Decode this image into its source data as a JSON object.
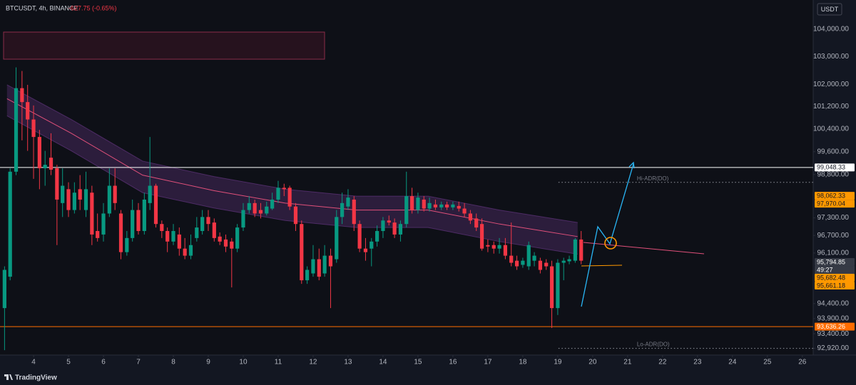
{
  "header": {
    "symbol": "BTCUSDT, 4h, BINANCE",
    "change": "-627.75 (-0.65%)",
    "currency": "USDT",
    "brand": "TradingView"
  },
  "chart_data": {
    "type": "candlestick",
    "log_scale": true,
    "grid": false,
    "up_color": "#089981",
    "down_color": "#f23645",
    "xlim": [
      3.04,
      26.31
    ],
    "xticks": [
      4,
      5,
      6,
      7,
      8,
      9,
      10,
      11,
      12,
      13,
      14,
      15,
      16,
      17,
      18,
      19,
      20,
      21,
      22,
      23,
      24,
      25,
      26
    ],
    "ylim": [
      92700,
      105080
    ],
    "yticks": [
      {
        "value": 104000,
        "label": "104,000.00"
      },
      {
        "value": 103000,
        "label": "103,000.00"
      },
      {
        "value": 102000,
        "label": "102,000.00"
      },
      {
        "value": 101200,
        "label": "101,200.00"
      },
      {
        "value": 100400,
        "label": "100,400.00"
      },
      {
        "value": 99600,
        "label": "99,600.00"
      },
      {
        "value": 98800,
        "label": "98,800.00"
      },
      {
        "value": 97300,
        "label": "97,300.00"
      },
      {
        "value": 96700,
        "label": "96,700.00"
      },
      {
        "value": 96100,
        "label": "96,100.00"
      },
      {
        "value": 94400,
        "label": "94,400.00"
      },
      {
        "value": 93900,
        "label": "93,900.00"
      },
      {
        "value": 93400,
        "label": "93,400.00"
      },
      {
        "value": 92920,
        "label": "92,920.00"
      }
    ],
    "x": [
      3.17,
      3.33,
      3.5,
      3.67,
      3.83,
      4,
      4.17,
      4.33,
      4.5,
      4.67,
      4.83,
      5,
      5.17,
      5.33,
      5.5,
      5.67,
      5.83,
      6,
      6.17,
      6.33,
      6.5,
      6.67,
      6.83,
      7,
      7.17,
      7.33,
      7.5,
      7.67,
      7.83,
      8,
      8.17,
      8.33,
      8.5,
      8.67,
      8.83,
      9,
      9.17,
      9.33,
      9.5,
      9.67,
      9.83,
      10,
      10.17,
      10.33,
      10.5,
      10.67,
      10.83,
      11,
      11.17,
      11.33,
      11.5,
      11.67,
      11.83,
      12,
      12.17,
      12.33,
      12.5,
      12.67,
      12.83,
      13,
      13.17,
      13.33,
      13.5,
      13.67,
      13.83,
      14,
      14.17,
      14.33,
      14.5,
      14.67,
      14.83,
      15,
      15.17,
      15.33,
      15.5,
      15.67,
      15.83,
      16,
      16.17,
      16.33,
      16.5,
      16.67,
      16.83,
      17,
      17.17,
      17.33,
      17.5,
      17.67,
      17.83,
      18,
      18.17,
      18.33,
      18.5,
      18.67,
      18.83,
      19,
      19.17,
      19.33,
      19.5,
      19.67
    ],
    "open": [
      94250,
      95300,
      98900,
      101860,
      101360,
      100740,
      100120,
      99020,
      99390,
      99020,
      97810,
      98290,
      97570,
      98290,
      97570,
      98170,
      96850,
      96730,
      97450,
      98410,
      97450,
      96130,
      96610,
      97570,
      96850,
      97810,
      98410,
      97090,
      96850,
      96490,
      96730,
      96250,
      96010,
      96610,
      96850,
      97330,
      97140,
      96660,
      96560,
      96490,
      96250,
      96970,
      97570,
      97810,
      97570,
      97450,
      97620,
      97930,
      98340,
      98340,
      97690,
      97090,
      95180,
      95410,
      95890,
      95410,
      96010,
      95890,
      97330,
      97690,
      97930,
      97090,
      96250,
      96250,
      96490,
      96850,
      97210,
      97140,
      96730,
      97090,
      98050,
      97570,
      97930,
      97620,
      97760,
      97660,
      97760,
      97660,
      97710,
      97620,
      97450,
      97280,
      97090,
      96370,
      96370,
      96250,
      96370,
      96010,
      95840,
      95700,
      95650,
      95840,
      95840,
      95770,
      95650,
      94250,
      95770,
      95820,
      95840,
      96560
    ],
    "high": [
      95650,
      99020,
      102610,
      102480,
      101980,
      101240,
      100370,
      99630,
      100250,
      99140,
      99020,
      98530,
      98530,
      98780,
      98900,
      98410,
      97450,
      97810,
      99020,
      99020,
      97570,
      96850,
      97930,
      97810,
      98170,
      100120,
      98480,
      97210,
      96970,
      97090,
      96970,
      96610,
      96730,
      97330,
      97570,
      97570,
      97280,
      96800,
      96730,
      96610,
      97090,
      97810,
      98050,
      97930,
      97810,
      97860,
      98170,
      98580,
      98480,
      98410,
      97810,
      97210,
      95650,
      96370,
      96250,
      96370,
      96250,
      97570,
      98170,
      98290,
      98050,
      97210,
      96610,
      96610,
      97040,
      97330,
      97380,
      97280,
      97210,
      98900,
      98340,
      98170,
      98050,
      98000,
      97930,
      97860,
      97860,
      97860,
      97860,
      97810,
      97570,
      97450,
      97280,
      96560,
      96490,
      96610,
      96610,
      97140,
      96010,
      95940,
      96490,
      96130,
      95940,
      95890,
      95840,
      95890,
      95940,
      96010,
      96610,
      96850
    ],
    "low": [
      92860,
      95180,
      98780,
      100000,
      99630,
      98650,
      98290,
      98410,
      98780,
      96370,
      97330,
      97330,
      97450,
      97570,
      97330,
      96370,
      96490,
      96490,
      97330,
      97570,
      95890,
      96010,
      96490,
      96730,
      96730,
      97570,
      96970,
      96610,
      96130,
      96370,
      96010,
      95890,
      95890,
      96490,
      96730,
      96850,
      96490,
      96370,
      96130,
      94940,
      96130,
      96850,
      97450,
      97330,
      97280,
      97380,
      97570,
      97810,
      98050,
      97570,
      96850,
      95060,
      95060,
      95300,
      95180,
      95300,
      94250,
      95770,
      97090,
      97570,
      96850,
      96130,
      95840,
      95650,
      96320,
      96610,
      97040,
      96610,
      96490,
      96970,
      97450,
      97450,
      97520,
      97520,
      97570,
      97570,
      97570,
      97570,
      97520,
      97330,
      97090,
      96850,
      96180,
      96130,
      96080,
      96080,
      95890,
      95650,
      95530,
      95600,
      95530,
      95650,
      95410,
      95530,
      93590,
      94020,
      95180,
      95720,
      95770,
      95720
    ],
    "close": [
      95530,
      98900,
      101860,
      101360,
      100740,
      100120,
      99020,
      99140,
      98970,
      97930,
      98410,
      97570,
      98170,
      97930,
      98290,
      96730,
      96610,
      97450,
      98410,
      97810,
      96130,
      96610,
      97570,
      96850,
      97930,
      98410,
      97090,
      96850,
      96490,
      96850,
      96250,
      96010,
      96370,
      96970,
      97330,
      97090,
      96610,
      96490,
      96320,
      96250,
      96970,
      97570,
      97810,
      97450,
      97450,
      97690,
      97930,
      98340,
      98290,
      97690,
      97090,
      95180,
      95530,
      95890,
      95300,
      96010,
      95650,
      97330,
      97810,
      98000,
      97090,
      96250,
      96130,
      96490,
      96850,
      97210,
      97140,
      96730,
      97090,
      98050,
      97570,
      98000,
      97620,
      97810,
      97660,
      97760,
      97660,
      97760,
      97620,
      97450,
      97210,
      96970,
      96250,
      96320,
      96250,
      96370,
      96010,
      95770,
      95650,
      95840,
      96370,
      96010,
      95530,
      95650,
      94250,
      95770,
      95840,
      95890,
      96560,
      95840
    ],
    "ma": {
      "color": "#e0507a",
      "band_color": "#7b3f9e",
      "x": [
        3.24,
        5.08,
        7.12,
        9.16,
        11.2,
        13.24,
        15.29,
        17.33,
        19.57
      ],
      "values": [
        101480,
        100250,
        98780,
        98240,
        97810,
        97570,
        97570,
        97090,
        96660
      ],
      "upper": [
        101980,
        100740,
        99270,
        98730,
        98290,
        98050,
        98050,
        97570,
        97140
      ],
      "lower": [
        100870,
        99630,
        98170,
        97640,
        97210,
        96970,
        96970,
        96490,
        96060
      ]
    },
    "price_labels": [
      {
        "value": 99048.33,
        "label": "99,048.33",
        "color": "#ffffff",
        "text_color": "#131722",
        "line": true
      },
      {
        "value": 98062.33,
        "label": "98,062.33",
        "color": "#ff9800",
        "text_color": "#131722",
        "line": false
      },
      {
        "value": 97970.04,
        "label": "97,970.04",
        "color": "#ff9800",
        "text_color": "#131722",
        "line": false
      },
      {
        "value": 95794.85,
        "label": "95,794.85",
        "color": "#363a45",
        "text_color": "#ffffff",
        "line": false,
        "countdown": "49:27"
      },
      {
        "value": 95682.48,
        "label": "95,682.48",
        "color": "#ff9800",
        "text_color": "#131722",
        "line": false
      },
      {
        "value": 95661.18,
        "label": "95,661.18",
        "color": "#ff9800",
        "text_color": "#131722",
        "line": false
      },
      {
        "value": 93636.26,
        "label": "93,636.26",
        "color": "#ff6d00",
        "text_color": "#ffffff",
        "line": true
      }
    ],
    "annotations": [
      {
        "text": "Hi-ADR(DO)",
        "value": 98530,
        "x": [
          19.02,
          26.31
        ]
      },
      {
        "text": "Lo-ADR(DO)",
        "value": 92920,
        "x": [
          19.02,
          26.31
        ]
      }
    ]
  }
}
